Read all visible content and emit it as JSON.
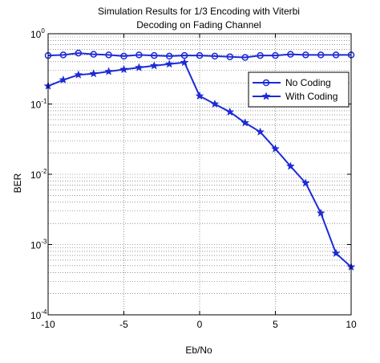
{
  "chart_data": {
    "type": "line",
    "title": [
      "Simulation Results for 1/3 Encoding with Viterbi",
      "Decoding on Fading Channel"
    ],
    "xlabel": "Eb/No",
    "ylabel": "BER",
    "xlim": [
      -10,
      10
    ],
    "ylim": [
      0.0001,
      1
    ],
    "yscale": "log",
    "grid": true,
    "legend_position": "top-right",
    "x_ticks": [
      {
        "value": -10,
        "label": "-10"
      },
      {
        "value": -5,
        "label": "-5"
      },
      {
        "value": 0,
        "label": "0"
      },
      {
        "value": 5,
        "label": "5"
      },
      {
        "value": 10,
        "label": "10"
      }
    ],
    "y_ticks": [
      {
        "value": 1,
        "label": "10",
        "exp": "0"
      },
      {
        "value": 0.1,
        "label": "10",
        "exp": "-1"
      },
      {
        "value": 0.01,
        "label": "10",
        "exp": "-2"
      },
      {
        "value": 0.001,
        "label": "10",
        "exp": "-3"
      },
      {
        "value": 0.0001,
        "label": "10",
        "exp": "-4"
      }
    ],
    "x": [
      -10,
      -9,
      -8,
      -7,
      -6,
      -5,
      -4,
      -3,
      -2,
      -1,
      0,
      1,
      2,
      3,
      4,
      5,
      6,
      7,
      8,
      9,
      10
    ],
    "series": [
      {
        "name": "No Coding",
        "marker": "circle",
        "color": "#1c2bd6",
        "values": [
          0.49,
          0.5,
          0.53,
          0.51,
          0.5,
          0.48,
          0.5,
          0.49,
          0.48,
          0.49,
          0.49,
          0.48,
          0.47,
          0.46,
          0.49,
          0.49,
          0.51,
          0.5,
          0.5,
          0.5,
          0.5
        ]
      },
      {
        "name": "With Coding",
        "marker": "star",
        "color": "#1c2bd6",
        "values": [
          0.18,
          0.22,
          0.26,
          0.27,
          0.29,
          0.31,
          0.33,
          0.35,
          0.37,
          0.39,
          0.13,
          0.1,
          0.077,
          0.054,
          0.04,
          0.023,
          0.013,
          0.0075,
          0.0028,
          0.00075,
          0.00048
        ]
      }
    ]
  }
}
